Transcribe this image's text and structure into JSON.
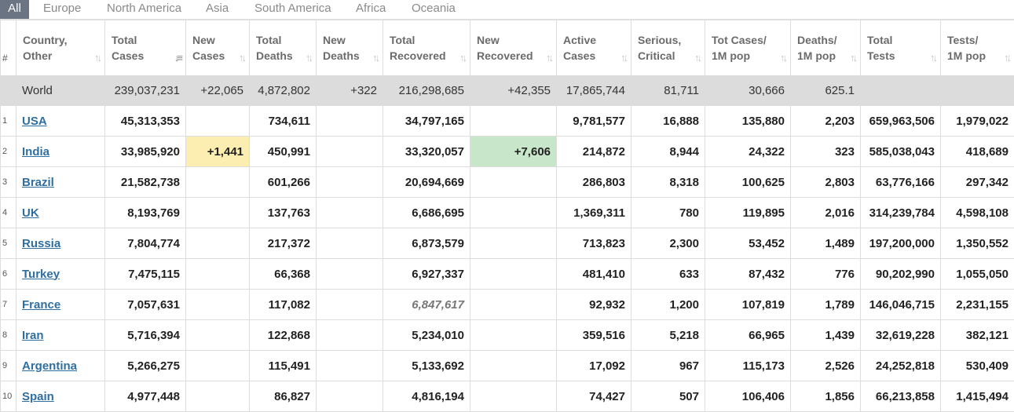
{
  "tabs": [
    {
      "label": "All",
      "active": true
    },
    {
      "label": "Europe"
    },
    {
      "label": "North America"
    },
    {
      "label": "Asia"
    },
    {
      "label": "South America"
    },
    {
      "label": "Africa"
    },
    {
      "label": "Oceania"
    }
  ],
  "columns": {
    "num": "#",
    "country": [
      "Country,",
      "Other"
    ],
    "total_cases": [
      "Total",
      "Cases"
    ],
    "new_cases": [
      "New",
      "Cases"
    ],
    "total_deaths": [
      "Total",
      "Deaths"
    ],
    "new_deaths": [
      "New",
      "Deaths"
    ],
    "total_recovered": [
      "Total",
      "Recovered"
    ],
    "new_recovered": [
      "New",
      "Recovered"
    ],
    "active_cases": [
      "Active",
      "Cases"
    ],
    "serious_critical": [
      "Serious,",
      "Critical"
    ],
    "tot_cases_per_1m": [
      "Tot Cases/",
      "1M pop"
    ],
    "deaths_per_1m": [
      "Deaths/",
      "1M pop"
    ],
    "total_tests": [
      "Total",
      "Tests"
    ],
    "tests_per_1m": [
      "Tests/",
      "1M pop"
    ]
  },
  "sort_icon": "sort-arrows-icon",
  "colors": {
    "new_cases_highlight": "#fcedb0",
    "new_recovered_highlight": "#c8e6c9",
    "world_row_bg": "#dcdcdc",
    "link": "#2f6ea0",
    "active_tab_bg": "#6b7482"
  },
  "world": {
    "country": "World",
    "total_cases": "239,037,231",
    "new_cases": "+22,065",
    "total_deaths": "4,872,802",
    "new_deaths": "+322",
    "total_recovered": "216,298,685",
    "new_recovered": "+42,355",
    "active_cases": "17,865,744",
    "serious_critical": "81,711",
    "tot_cases_per_1m": "30,666",
    "deaths_per_1m": "625.1",
    "total_tests": "",
    "tests_per_1m": ""
  },
  "rows": [
    {
      "num": "1",
      "country": "USA",
      "total_cases": "45,313,353",
      "new_cases": "",
      "total_deaths": "734,611",
      "new_deaths": "",
      "total_recovered": "34,797,165",
      "new_recovered": "",
      "active_cases": "9,781,577",
      "serious_critical": "16,888",
      "tot_cases_per_1m": "135,880",
      "deaths_per_1m": "2,203",
      "total_tests": "659,963,506",
      "tests_per_1m": "1,979,022"
    },
    {
      "num": "2",
      "country": "India",
      "total_cases": "33,985,920",
      "new_cases": "+1,441",
      "total_deaths": "450,991",
      "new_deaths": "",
      "total_recovered": "33,320,057",
      "new_recovered": "+7,606",
      "active_cases": "214,872",
      "serious_critical": "8,944",
      "tot_cases_per_1m": "24,322",
      "deaths_per_1m": "323",
      "total_tests": "585,038,043",
      "tests_per_1m": "418,689"
    },
    {
      "num": "3",
      "country": "Brazil",
      "total_cases": "21,582,738",
      "new_cases": "",
      "total_deaths": "601,266",
      "new_deaths": "",
      "total_recovered": "20,694,669",
      "new_recovered": "",
      "active_cases": "286,803",
      "serious_critical": "8,318",
      "tot_cases_per_1m": "100,625",
      "deaths_per_1m": "2,803",
      "total_tests": "63,776,166",
      "tests_per_1m": "297,342"
    },
    {
      "num": "4",
      "country": "UK",
      "total_cases": "8,193,769",
      "new_cases": "",
      "total_deaths": "137,763",
      "new_deaths": "",
      "total_recovered": "6,686,695",
      "new_recovered": "",
      "active_cases": "1,369,311",
      "serious_critical": "780",
      "tot_cases_per_1m": "119,895",
      "deaths_per_1m": "2,016",
      "total_tests": "314,239,784",
      "tests_per_1m": "4,598,108"
    },
    {
      "num": "5",
      "country": "Russia",
      "total_cases": "7,804,774",
      "new_cases": "",
      "total_deaths": "217,372",
      "new_deaths": "",
      "total_recovered": "6,873,579",
      "new_recovered": "",
      "active_cases": "713,823",
      "serious_critical": "2,300",
      "tot_cases_per_1m": "53,452",
      "deaths_per_1m": "1,489",
      "total_tests": "197,200,000",
      "tests_per_1m": "1,350,552"
    },
    {
      "num": "6",
      "country": "Turkey",
      "total_cases": "7,475,115",
      "new_cases": "",
      "total_deaths": "66,368",
      "new_deaths": "",
      "total_recovered": "6,927,337",
      "new_recovered": "",
      "active_cases": "481,410",
      "serious_critical": "633",
      "tot_cases_per_1m": "87,432",
      "deaths_per_1m": "776",
      "total_tests": "90,202,990",
      "tests_per_1m": "1,055,050"
    },
    {
      "num": "7",
      "country": "France",
      "total_cases": "7,057,631",
      "new_cases": "",
      "total_deaths": "117,082",
      "new_deaths": "",
      "total_recovered": "6,847,617",
      "recovered_estimated": true,
      "new_recovered": "",
      "active_cases": "92,932",
      "serious_critical": "1,200",
      "tot_cases_per_1m": "107,819",
      "deaths_per_1m": "1,789",
      "total_tests": "146,046,715",
      "tests_per_1m": "2,231,155"
    },
    {
      "num": "8",
      "country": "Iran",
      "total_cases": "5,716,394",
      "new_cases": "",
      "total_deaths": "122,868",
      "new_deaths": "",
      "total_recovered": "5,234,010",
      "new_recovered": "",
      "active_cases": "359,516",
      "serious_critical": "5,218",
      "tot_cases_per_1m": "66,965",
      "deaths_per_1m": "1,439",
      "total_tests": "32,619,228",
      "tests_per_1m": "382,121"
    },
    {
      "num": "9",
      "country": "Argentina",
      "total_cases": "5,266,275",
      "new_cases": "",
      "total_deaths": "115,491",
      "new_deaths": "",
      "total_recovered": "5,133,692",
      "new_recovered": "",
      "active_cases": "17,092",
      "serious_critical": "967",
      "tot_cases_per_1m": "115,173",
      "deaths_per_1m": "2,526",
      "total_tests": "24,252,818",
      "tests_per_1m": "530,409"
    },
    {
      "num": "10",
      "country": "Spain",
      "total_cases": "4,977,448",
      "new_cases": "",
      "total_deaths": "86,827",
      "new_deaths": "",
      "total_recovered": "4,816,194",
      "new_recovered": "",
      "active_cases": "74,427",
      "serious_critical": "507",
      "tot_cases_per_1m": "106,406",
      "deaths_per_1m": "1,856",
      "total_tests": "66,213,858",
      "tests_per_1m": "1,415,494"
    }
  ]
}
